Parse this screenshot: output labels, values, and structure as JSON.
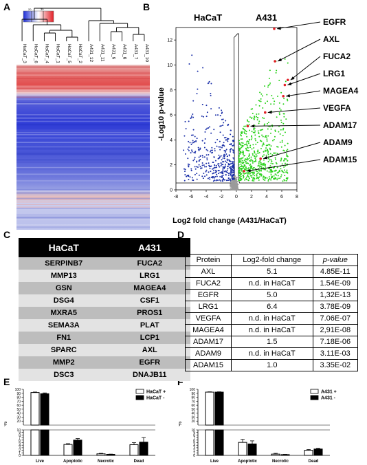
{
  "panels": {
    "A": "A",
    "B": "B",
    "C": "C",
    "D": "D",
    "E": "E",
    "F": "F"
  },
  "heatmap": {
    "scale_low": "20",
    "scale_high": "30",
    "samples": [
      "HaCaT_3",
      "HaCaT_6",
      "HaCaT_4",
      "HaCaT_1",
      "HaCaT_5",
      "HaCaT_2",
      "A431_12",
      "A431_11",
      "A431_9",
      "A431_8",
      "A431_7",
      "A431_10"
    ],
    "colors": {
      "low": "#1f2fd6",
      "mid": "#f2f2f2",
      "high": "#e21f26"
    }
  },
  "volcano": {
    "title_left": "HaCaT",
    "title_right": "A431",
    "xlabel": "Log2 fold change (A431/HaCaT)",
    "ylabel": "-Log10 p-value",
    "xticks": [
      "-8",
      "-6",
      "-4",
      "-2",
      "0",
      "2",
      "4",
      "6",
      "8"
    ],
    "yticks": [
      "0",
      "2",
      "4",
      "6",
      "8",
      "10",
      "12"
    ],
    "genes": [
      "EGFR",
      "AXL",
      "FUCA2",
      "LRG1",
      "MAGEA4",
      "VEGFA",
      "ADAM17",
      "ADAM9",
      "ADAM15"
    ],
    "colors": {
      "down": "#1a2fa8",
      "up": "#29d21a",
      "ns": "#9a9a9a",
      "highlight": "#e21f26"
    }
  },
  "tableC": {
    "headers": [
      "HaCaT",
      "A431"
    ],
    "rows": [
      [
        "SERPINB7",
        "FUCA2"
      ],
      [
        "MMP13",
        "LRG1"
      ],
      [
        "GSN",
        "MAGEA4"
      ],
      [
        "DSG4",
        "CSF1"
      ],
      [
        "MXRA5",
        "PROS1"
      ],
      [
        "SEMA3A",
        "PLAT"
      ],
      [
        "FN1",
        "LCP1"
      ],
      [
        "SPARC",
        "AXL"
      ],
      [
        "MMP2",
        "EGFR"
      ],
      [
        "DSC3",
        "DNAJB11"
      ]
    ]
  },
  "tableD": {
    "headers": [
      "Protein",
      "Log2-fold change",
      "p-value"
    ],
    "rows": [
      [
        "AXL",
        "5.1",
        "4.85E-11"
      ],
      [
        "FUCA2",
        "n.d. in HaCaT",
        "1.54E-09"
      ],
      [
        "EGFR",
        "5.0",
        "1,32E-13"
      ],
      [
        "LRG1",
        "6.4",
        "3.78E-09"
      ],
      [
        "VEGFA",
        "n.d. in HaCaT",
        "7.06E-07"
      ],
      [
        "MAGEA4",
        "n.d. in HaCaT",
        "2,91E-08"
      ],
      [
        "ADAM17",
        "1.5",
        "7.18E-06"
      ],
      [
        "ADAM9",
        "n.d. in HaCaT",
        "3.11E-03"
      ],
      [
        "ADAM15",
        "1.0",
        "3.35E-02"
      ]
    ]
  },
  "chart_data": [
    {
      "type": "heatmap",
      "samples": [
        "HaCaT_3",
        "HaCaT_6",
        "HaCaT_4",
        "HaCaT_1",
        "HaCaT_5",
        "HaCaT_2",
        "A431_12",
        "A431_11",
        "A431_9",
        "A431_8",
        "A431_7",
        "A431_10"
      ],
      "color_scale": [
        "20",
        "30"
      ]
    },
    {
      "type": "scatter",
      "xlabel": "Log2 fold change (A431/HaCaT)",
      "ylabel": "-Log10 p-value",
      "xlim": [
        -8,
        8
      ],
      "ylim": [
        0,
        13
      ],
      "highlighted": [
        {
          "gene": "EGFR",
          "x": 5.0,
          "y": 12.9
        },
        {
          "gene": "AXL",
          "x": 5.1,
          "y": 10.3
        },
        {
          "gene": "FUCA2",
          "x": 6.8,
          "y": 8.8
        },
        {
          "gene": "LRG1",
          "x": 6.4,
          "y": 8.4
        },
        {
          "gene": "MAGEA4",
          "x": 6.2,
          "y": 7.5
        },
        {
          "gene": "VEGFA",
          "x": 3.8,
          "y": 6.2
        },
        {
          "gene": "ADAM17",
          "x": 1.5,
          "y": 5.1
        },
        {
          "gene": "ADAM9",
          "x": 3.2,
          "y": 2.5
        },
        {
          "gene": "ADAM15",
          "x": 1.0,
          "y": 1.5
        }
      ]
    },
    {
      "type": "bar",
      "ylabel": "%",
      "categories": [
        "Live",
        "Apoptotic",
        "Necrotic",
        "Dead"
      ],
      "yticks": [
        "0",
        "1",
        "2",
        "3",
        "4",
        "5",
        "6",
        "7",
        "8",
        "9",
        "10",
        "20",
        "30",
        "40",
        "50",
        "60",
        "70",
        "80",
        "90",
        "100"
      ],
      "series": [
        {
          "name": "HaCaT +",
          "values": [
            92,
            4.3,
            0.6,
            4.2
          ],
          "errors": [
            1.2,
            0.3,
            0.2,
            0.8
          ],
          "color": "#ffffff"
        },
        {
          "name": "HaCaT -",
          "values": [
            89,
            6.0,
            0.4,
            5.2
          ],
          "errors": [
            2.0,
            0.6,
            0.1,
            1.8
          ],
          "color": "#000000"
        }
      ]
    },
    {
      "type": "bar",
      "ylabel": "%",
      "categories": [
        "Live",
        "Apoptotic",
        "Necrotic",
        "Dead"
      ],
      "yticks": [
        "0",
        "1",
        "2",
        "3",
        "4",
        "5",
        "6",
        "7",
        "8",
        "9",
        "10",
        "20",
        "30",
        "40",
        "50",
        "60",
        "70",
        "80",
        "90",
        "100"
      ],
      "series": [
        {
          "name": "A431 +",
          "values": [
            93,
            5.1,
            0.5,
            2.0
          ],
          "errors": [
            0.8,
            1.2,
            0.3,
            0.3
          ],
          "color": "#ffffff"
        },
        {
          "name": "A431 -",
          "values": [
            93,
            4.5,
            0.3,
            2.5
          ],
          "errors": [
            0.8,
            1.2,
            0.1,
            0.3
          ],
          "color": "#000000"
        }
      ]
    }
  ]
}
